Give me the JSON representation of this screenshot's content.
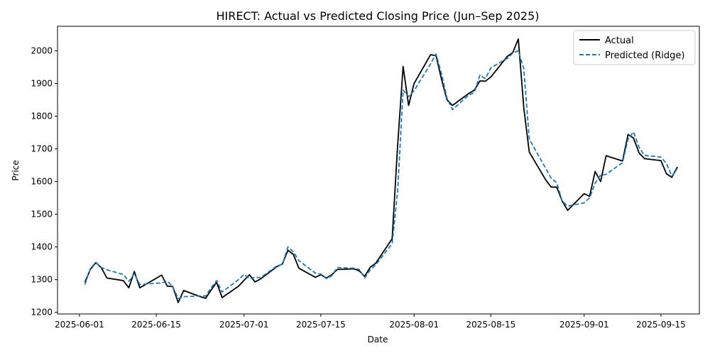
{
  "chart_data": {
    "type": "line",
    "title": "HIRECT: Actual vs Predicted Closing Price (Jun–Sep 2025)",
    "xlabel": "Date",
    "ylabel": "Price",
    "xlim": [
      "2025-05-28",
      "2025-09-22"
    ],
    "ylim": [
      1195,
      2075
    ],
    "x_ticks": [
      "2025-06-01",
      "2025-06-15",
      "2025-07-01",
      "2025-07-15",
      "2025-08-01",
      "2025-08-15",
      "2025-09-01",
      "2025-09-15"
    ],
    "y_ticks": [
      1200,
      1300,
      1400,
      1500,
      1600,
      1700,
      1800,
      1900,
      2000
    ],
    "grid": false,
    "legend_position": "top-right",
    "series": [
      {
        "name": "Actual",
        "color": "#000000",
        "line_style": "solid",
        "points": [
          [
            "2025-06-02",
            1292
          ],
          [
            "2025-06-03",
            1332
          ],
          [
            "2025-06-04",
            1352
          ],
          [
            "2025-06-05",
            1336
          ],
          [
            "2025-06-06",
            1305
          ],
          [
            "2025-06-09",
            1297
          ],
          [
            "2025-06-10",
            1275
          ],
          [
            "2025-06-11",
            1325
          ],
          [
            "2025-06-12",
            1275
          ],
          [
            "2025-06-16",
            1314
          ],
          [
            "2025-06-17",
            1280
          ],
          [
            "2025-06-18",
            1279
          ],
          [
            "2025-06-19",
            1230
          ],
          [
            "2025-06-20",
            1267
          ],
          [
            "2025-06-23",
            1248
          ],
          [
            "2025-06-24",
            1243
          ],
          [
            "2025-06-25",
            1268
          ],
          [
            "2025-06-26",
            1292
          ],
          [
            "2025-06-27",
            1245
          ],
          [
            "2025-06-30",
            1280
          ],
          [
            "2025-07-01",
            1298
          ],
          [
            "2025-07-02",
            1315
          ],
          [
            "2025-07-03",
            1293
          ],
          [
            "2025-07-04",
            1302
          ],
          [
            "2025-07-07",
            1340
          ],
          [
            "2025-07-08",
            1348
          ],
          [
            "2025-07-09",
            1390
          ],
          [
            "2025-07-10",
            1377
          ],
          [
            "2025-07-11",
            1335
          ],
          [
            "2025-07-14",
            1307
          ],
          [
            "2025-07-15",
            1315
          ],
          [
            "2025-07-16",
            1305
          ],
          [
            "2025-07-17",
            1315
          ],
          [
            "2025-07-18",
            1331
          ],
          [
            "2025-07-21",
            1333
          ],
          [
            "2025-07-22",
            1327
          ],
          [
            "2025-07-23",
            1310
          ],
          [
            "2025-07-24",
            1338
          ],
          [
            "2025-07-25",
            1350
          ],
          [
            "2025-07-28",
            1425
          ],
          [
            "2025-07-29",
            1710
          ],
          [
            "2025-07-30",
            1952
          ],
          [
            "2025-07-31",
            1833
          ],
          [
            "2025-08-01",
            1900
          ],
          [
            "2025-08-04",
            1988
          ],
          [
            "2025-08-05",
            1985
          ],
          [
            "2025-08-06",
            1913
          ],
          [
            "2025-08-07",
            1850
          ],
          [
            "2025-08-08",
            1833
          ],
          [
            "2025-08-11",
            1870
          ],
          [
            "2025-08-12",
            1880
          ],
          [
            "2025-08-13",
            1908
          ],
          [
            "2025-08-14",
            1907
          ],
          [
            "2025-08-15",
            1920
          ],
          [
            "2025-08-18",
            1983
          ],
          [
            "2025-08-19",
            1995
          ],
          [
            "2025-08-20",
            2036
          ],
          [
            "2025-08-21",
            1825
          ],
          [
            "2025-08-22",
            1690
          ],
          [
            "2025-08-25",
            1605
          ],
          [
            "2025-08-26",
            1583
          ],
          [
            "2025-08-27",
            1583
          ],
          [
            "2025-08-28",
            1540
          ],
          [
            "2025-08-29",
            1512
          ],
          [
            "2025-09-01",
            1563
          ],
          [
            "2025-09-02",
            1555
          ],
          [
            "2025-09-03",
            1631
          ],
          [
            "2025-09-04",
            1600
          ],
          [
            "2025-09-05",
            1679
          ],
          [
            "2025-09-08",
            1663
          ],
          [
            "2025-09-09",
            1744
          ],
          [
            "2025-09-10",
            1733
          ],
          [
            "2025-09-11",
            1688
          ],
          [
            "2025-09-12",
            1670
          ],
          [
            "2025-09-15",
            1664
          ],
          [
            "2025-09-16",
            1624
          ],
          [
            "2025-09-17",
            1613
          ],
          [
            "2025-09-18",
            1645
          ]
        ]
      },
      {
        "name": "Predicted (Ridge)",
        "color": "#1f77b4",
        "line_style": "dashed",
        "points": [
          [
            "2025-06-02",
            1285
          ],
          [
            "2025-06-03",
            1335
          ],
          [
            "2025-06-04",
            1353
          ],
          [
            "2025-06-05",
            1337
          ],
          [
            "2025-06-06",
            1330
          ],
          [
            "2025-06-09",
            1316
          ],
          [
            "2025-06-10",
            1295
          ],
          [
            "2025-06-11",
            1318
          ],
          [
            "2025-06-12",
            1285
          ],
          [
            "2025-06-16",
            1290
          ],
          [
            "2025-06-17",
            1295
          ],
          [
            "2025-06-18",
            1279
          ],
          [
            "2025-06-19",
            1242
          ],
          [
            "2025-06-20",
            1248
          ],
          [
            "2025-06-23",
            1250
          ],
          [
            "2025-06-24",
            1250
          ],
          [
            "2025-06-25",
            1275
          ],
          [
            "2025-06-26",
            1297
          ],
          [
            "2025-06-27",
            1262
          ],
          [
            "2025-06-30",
            1300
          ],
          [
            "2025-07-01",
            1316
          ],
          [
            "2025-07-02",
            1303
          ],
          [
            "2025-07-03",
            1307
          ],
          [
            "2025-07-04",
            1306
          ],
          [
            "2025-07-07",
            1342
          ],
          [
            "2025-07-08",
            1347
          ],
          [
            "2025-07-09",
            1400
          ],
          [
            "2025-07-10",
            1385
          ],
          [
            "2025-07-11",
            1358
          ],
          [
            "2025-07-14",
            1320
          ],
          [
            "2025-07-15",
            1317
          ],
          [
            "2025-07-16",
            1303
          ],
          [
            "2025-07-17",
            1312
          ],
          [
            "2025-07-18",
            1337
          ],
          [
            "2025-07-21",
            1335
          ],
          [
            "2025-07-22",
            1331
          ],
          [
            "2025-07-23",
            1305
          ],
          [
            "2025-07-24",
            1330
          ],
          [
            "2025-07-25",
            1345
          ],
          [
            "2025-07-28",
            1410
          ],
          [
            "2025-07-29",
            1570
          ],
          [
            "2025-07-30",
            1880
          ],
          [
            "2025-07-31",
            1860
          ],
          [
            "2025-08-01",
            1878
          ],
          [
            "2025-08-04",
            1960
          ],
          [
            "2025-08-05",
            1990
          ],
          [
            "2025-08-06",
            1930
          ],
          [
            "2025-08-07",
            1855
          ],
          [
            "2025-08-08",
            1820
          ],
          [
            "2025-08-11",
            1865
          ],
          [
            "2025-08-12",
            1873
          ],
          [
            "2025-08-13",
            1925
          ],
          [
            "2025-08-14",
            1915
          ],
          [
            "2025-08-15",
            1948
          ],
          [
            "2025-08-18",
            1977
          ],
          [
            "2025-08-19",
            1993
          ],
          [
            "2025-08-20",
            2000
          ],
          [
            "2025-08-21",
            1945
          ],
          [
            "2025-08-22",
            1730
          ],
          [
            "2025-08-25",
            1640
          ],
          [
            "2025-08-26",
            1610
          ],
          [
            "2025-08-27",
            1597
          ],
          [
            "2025-08-28",
            1540
          ],
          [
            "2025-08-29",
            1525
          ],
          [
            "2025-09-01",
            1535
          ],
          [
            "2025-09-02",
            1550
          ],
          [
            "2025-09-03",
            1595
          ],
          [
            "2025-09-04",
            1620
          ],
          [
            "2025-09-05",
            1622
          ],
          [
            "2025-09-08",
            1658
          ],
          [
            "2025-09-09",
            1730
          ],
          [
            "2025-09-10",
            1752
          ],
          [
            "2025-09-11",
            1705
          ],
          [
            "2025-09-12",
            1680
          ],
          [
            "2025-09-15",
            1675
          ],
          [
            "2025-09-16",
            1655
          ],
          [
            "2025-09-17",
            1617
          ],
          [
            "2025-09-18",
            1640
          ]
        ]
      }
    ]
  }
}
